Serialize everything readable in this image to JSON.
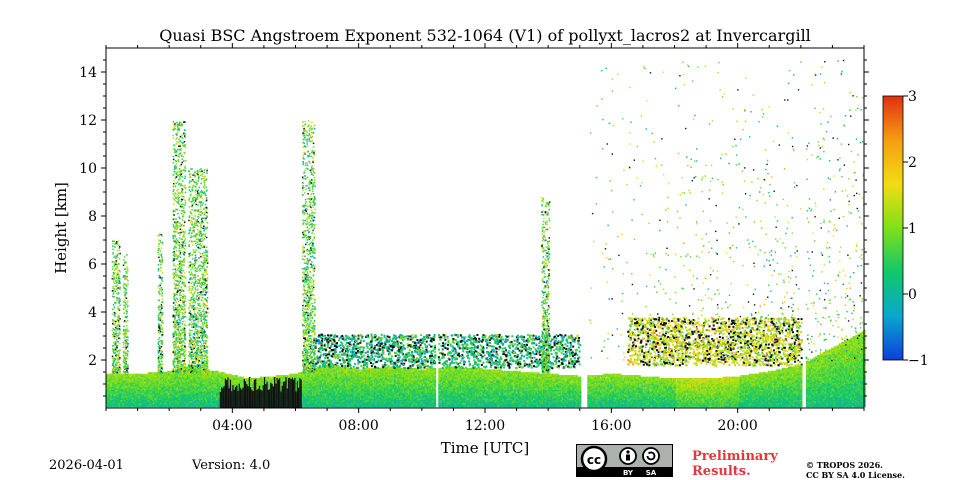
{
  "chart_data": {
    "type": "heatmap",
    "title": "Quasi BSC Angstroem Exponent 532-1064 (V1) of pollyxt_lacros2 at Invercargill",
    "xlabel": "Time [UTC]",
    "ylabel": "Height [km]",
    "xlim_hours": [
      0,
      24
    ],
    "ylim_km": [
      0,
      15
    ],
    "x_ticks": [
      {
        "hour": 4,
        "label": "04:00"
      },
      {
        "hour": 8,
        "label": "08:00"
      },
      {
        "hour": 12,
        "label": "12:00"
      },
      {
        "hour": 16,
        "label": "16:00"
      },
      {
        "hour": 20,
        "label": "20:00"
      }
    ],
    "y_ticks": [
      {
        "km": 2,
        "label": "2"
      },
      {
        "km": 4,
        "label": "4"
      },
      {
        "km": 6,
        "label": "6"
      },
      {
        "km": 8,
        "label": "8"
      },
      {
        "km": 10,
        "label": "10"
      },
      {
        "km": 12,
        "label": "12"
      },
      {
        "km": 14,
        "label": "14"
      }
    ],
    "colorbar": {
      "range": [
        -1,
        3
      ],
      "ticks": [
        {
          "value": -1,
          "label": "−1"
        },
        {
          "value": 0,
          "label": "0"
        },
        {
          "value": 1,
          "label": "1"
        },
        {
          "value": 2,
          "label": "2"
        },
        {
          "value": 3,
          "label": "3"
        }
      ],
      "colors": [
        "#0d3fd8",
        "#0aa7cf",
        "#12c76a",
        "#7fe01a",
        "#f2dc14",
        "#f59d14",
        "#e03010"
      ]
    },
    "boundary_layer_km": [
      [
        0.0,
        1.4
      ],
      [
        1.0,
        1.4
      ],
      [
        2.0,
        1.5
      ],
      [
        2.5,
        1.7
      ],
      [
        3.5,
        1.5
      ],
      [
        4.5,
        1.2
      ],
      [
        6.0,
        1.4
      ],
      [
        6.5,
        1.6
      ],
      [
        7.0,
        1.8
      ],
      [
        8.0,
        1.6
      ],
      [
        9.0,
        1.7
      ],
      [
        10.0,
        1.6
      ],
      [
        11.0,
        1.7
      ],
      [
        12.0,
        1.6
      ],
      [
        13.0,
        1.5
      ],
      [
        14.0,
        1.4
      ],
      [
        15.0,
        1.3
      ],
      [
        16.0,
        1.4
      ],
      [
        17.0,
        1.3
      ],
      [
        18.0,
        1.2
      ],
      [
        19.0,
        1.2
      ],
      [
        20.0,
        1.3
      ],
      [
        21.0,
        1.5
      ],
      [
        22.0,
        1.8
      ],
      [
        23.0,
        2.5
      ],
      [
        24.0,
        3.2
      ]
    ],
    "aerosol_layers": [
      {
        "t0": 6.6,
        "t1": 15.0,
        "h0": 1.7,
        "h1": 3.1,
        "mean": 0.3
      },
      {
        "t0": 16.5,
        "t1": 22.0,
        "h0": 1.8,
        "h1": 3.8,
        "mean": 1.5
      }
    ],
    "plumes": [
      {
        "t": 0.3,
        "top": 7.0,
        "width": 0.25
      },
      {
        "t": 0.6,
        "top": 6.5,
        "width": 0.15
      },
      {
        "t": 1.7,
        "top": 7.3,
        "width": 0.15
      },
      {
        "t": 2.3,
        "top": 12.0,
        "width": 0.4
      },
      {
        "t": 2.9,
        "top": 10.0,
        "width": 0.6
      },
      {
        "t": 6.4,
        "top": 12.0,
        "width": 0.4
      },
      {
        "t": 13.9,
        "top": 8.8,
        "width": 0.25
      }
    ],
    "data_gaps": [
      {
        "t0": 10.4,
        "t1": 10.5
      },
      {
        "t0": 15.0,
        "t1": 15.2
      },
      {
        "t0": 22.0,
        "t1": 22.15
      }
    ]
  },
  "footer": {
    "date": "2026-04-01",
    "version": "Version: 4.0",
    "preliminary_line1": "Preliminary",
    "preliminary_line2": "Results.",
    "copyright_line1": "© TROPOS 2026.",
    "copyright_line2": "CC BY SA 4.0 License.",
    "license_badge": "cc-by-sa-badge",
    "badge_by": "BY",
    "badge_sa": "SA"
  }
}
